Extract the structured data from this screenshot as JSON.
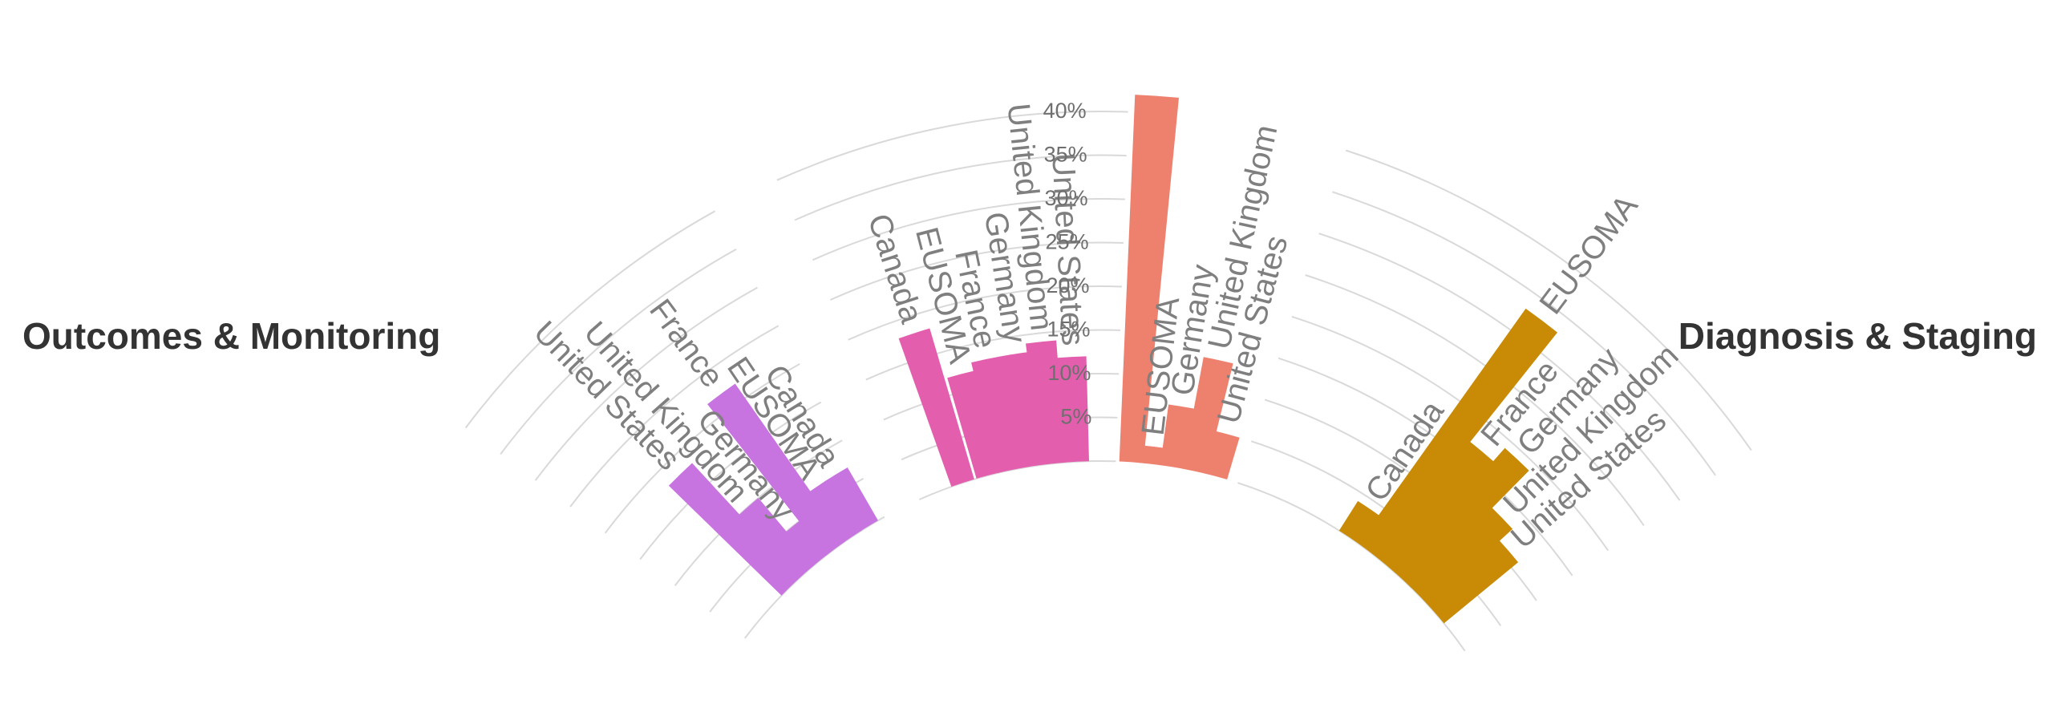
{
  "chart_data": {
    "type": "bar",
    "polar": true,
    "grid": true,
    "radial_axis": {
      "ticks": [
        5,
        10,
        15,
        20,
        25,
        30,
        35,
        40
      ],
      "tick_labels": [
        "5%",
        "10%",
        "15%",
        "20%",
        "25%",
        "30%",
        "35%",
        "40%"
      ],
      "range": [
        0,
        43
      ]
    },
    "groups": [
      {
        "title": "Outcomes & Monitoring",
        "color": "#c774e0",
        "categories": [
          "United States",
          "United Kingdom",
          "Germany",
          "France",
          "EUSOMA",
          "Canada"
        ],
        "values": [
          18,
          10,
          5,
          22,
          7,
          7
        ]
      },
      {
        "title": "",
        "color": "#e35fae",
        "categories": [
          "Canada",
          "EUSOMA",
          "France",
          "Germany",
          "United Kingdom",
          "United States"
        ],
        "values": [
          18,
          12,
          13,
          13,
          14,
          12
        ]
      },
      {
        "title": "",
        "color": "#ee806e",
        "categories": [
          "",
          "EUSOMA",
          "Germany",
          "United Kingdom",
          "United States"
        ],
        "values": [
          42,
          2,
          7,
          13,
          5
        ]
      },
      {
        "title": "Diagnosis & Staging",
        "color": "#c98a06",
        "categories": [
          "Canada",
          "EUSOMA",
          "France",
          "Germany",
          "United Kingdom",
          "United States"
        ],
        "values": [
          4,
          33,
          17,
          19,
          13,
          11
        ]
      }
    ]
  }
}
